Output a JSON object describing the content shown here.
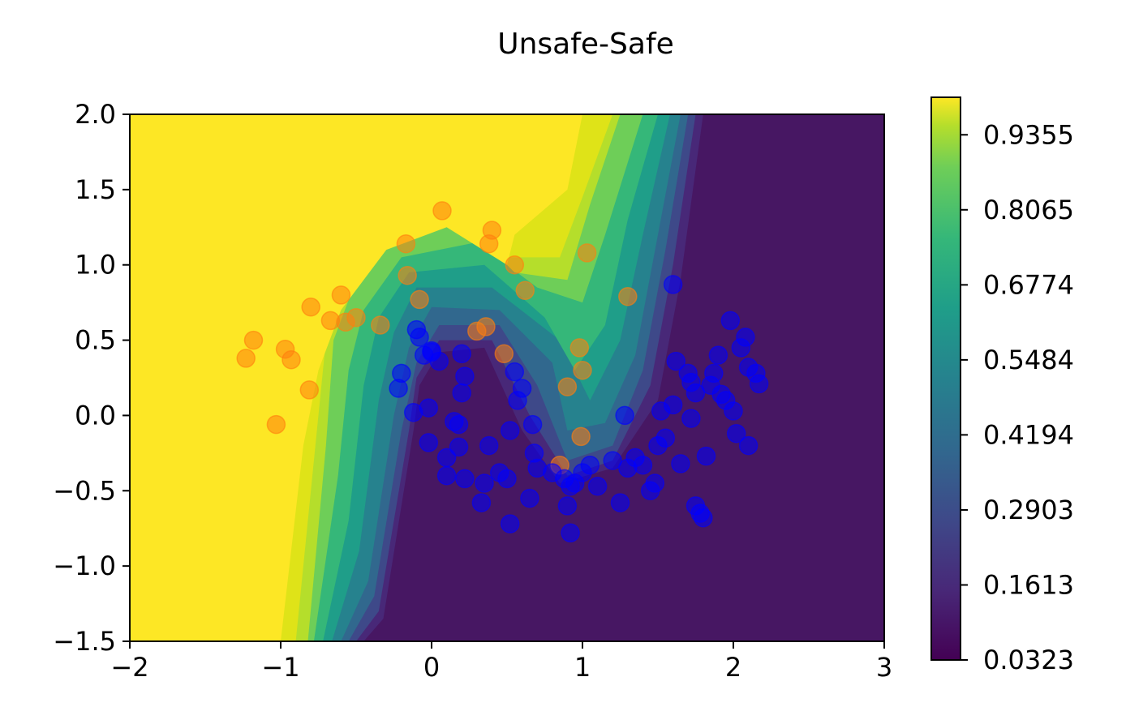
{
  "chart_data": {
    "type": "contour",
    "title": "Unsafe-Safe",
    "xlabel": "",
    "ylabel": "",
    "xlim": [
      -2,
      3
    ],
    "ylim": [
      -1.5,
      2.0
    ],
    "x_ticks": [
      -2,
      -1,
      0,
      1,
      2,
      3
    ],
    "x_tick_labels": [
      "−2",
      "−1",
      "0",
      "1",
      "2",
      "3"
    ],
    "y_ticks": [
      -1.5,
      -1.0,
      -0.5,
      0.0,
      0.5,
      1.0,
      1.5,
      2.0
    ],
    "y_tick_labels": [
      "−1.5",
      "−1.0",
      "−0.5",
      "0.0",
      "0.5",
      "1.0",
      "1.5",
      "2.0"
    ],
    "colorbar": {
      "min": 0.0323,
      "max": 1.0,
      "ticks": [
        0.0323,
        0.1613,
        0.2903,
        0.4194,
        0.5484,
        0.6774,
        0.8065,
        0.9355
      ],
      "tick_labels": [
        "0.0323",
        "0.1613",
        "0.2903",
        "0.4194",
        "0.5484",
        "0.6774",
        "0.8065",
        "0.9355"
      ],
      "colormap": "viridis"
    },
    "series": [
      {
        "class": "unsafe",
        "color": "#ff7f0e",
        "points": [
          [
            -1.23,
            0.38
          ],
          [
            -1.18,
            0.5
          ],
          [
            -1.03,
            -0.06
          ],
          [
            -0.97,
            0.44
          ],
          [
            -0.93,
            0.37
          ],
          [
            -0.81,
            0.17
          ],
          [
            -0.8,
            0.72
          ],
          [
            -0.67,
            0.63
          ],
          [
            -0.6,
            0.8
          ],
          [
            -0.57,
            0.62
          ],
          [
            -0.5,
            0.65
          ],
          [
            -0.34,
            0.6
          ],
          [
            -0.17,
            1.14
          ],
          [
            -0.16,
            0.93
          ],
          [
            -0.08,
            0.77
          ],
          [
            0.07,
            1.36
          ],
          [
            0.3,
            0.56
          ],
          [
            0.36,
            0.59
          ],
          [
            0.38,
            1.14
          ],
          [
            0.4,
            1.23
          ],
          [
            0.48,
            0.41
          ],
          [
            0.55,
            1.0
          ],
          [
            0.62,
            0.83
          ],
          [
            0.85,
            -0.33
          ],
          [
            0.9,
            0.19
          ],
          [
            0.98,
            0.45
          ],
          [
            1.0,
            0.3
          ],
          [
            0.99,
            -0.14
          ],
          [
            1.03,
            1.08
          ],
          [
            1.3,
            0.79
          ]
        ]
      },
      {
        "class": "safe",
        "color": "#0000ff",
        "points": [
          [
            -0.1,
            0.57
          ],
          [
            -0.08,
            0.52
          ],
          [
            -0.2,
            0.28
          ],
          [
            -0.22,
            0.18
          ],
          [
            -0.12,
            0.02
          ],
          [
            -0.02,
            0.05
          ],
          [
            -0.05,
            0.4
          ],
          [
            0.0,
            0.43
          ],
          [
            0.05,
            0.36
          ],
          [
            0.2,
            0.41
          ],
          [
            0.22,
            0.26
          ],
          [
            0.2,
            0.15
          ],
          [
            0.15,
            -0.04
          ],
          [
            0.18,
            -0.06
          ],
          [
            -0.02,
            -0.18
          ],
          [
            0.1,
            -0.28
          ],
          [
            0.18,
            -0.21
          ],
          [
            0.1,
            -0.4
          ],
          [
            0.22,
            -0.42
          ],
          [
            0.38,
            -0.2
          ],
          [
            0.35,
            -0.45
          ],
          [
            0.33,
            -0.58
          ],
          [
            0.45,
            -0.38
          ],
          [
            0.5,
            -0.42
          ],
          [
            0.52,
            -0.1
          ],
          [
            0.55,
            0.29
          ],
          [
            0.57,
            0.1
          ],
          [
            0.6,
            0.18
          ],
          [
            0.65,
            -0.55
          ],
          [
            0.52,
            -0.72
          ],
          [
            0.7,
            -0.35
          ],
          [
            0.68,
            -0.25
          ],
          [
            0.8,
            -0.38
          ],
          [
            0.88,
            -0.42
          ],
          [
            0.92,
            -0.47
          ],
          [
            0.95,
            -0.45
          ],
          [
            1.0,
            -0.38
          ],
          [
            1.05,
            -0.33
          ],
          [
            1.1,
            -0.47
          ],
          [
            0.9,
            -0.6
          ],
          [
            0.92,
            -0.78
          ],
          [
            1.2,
            -0.3
          ],
          [
            1.25,
            -0.58
          ],
          [
            1.3,
            -0.35
          ],
          [
            1.28,
            0.0
          ],
          [
            1.35,
            -0.28
          ],
          [
            1.4,
            -0.33
          ],
          [
            1.45,
            -0.5
          ],
          [
            1.48,
            -0.45
          ],
          [
            1.5,
            -0.2
          ],
          [
            1.52,
            0.03
          ],
          [
            1.55,
            -0.15
          ],
          [
            1.6,
            0.07
          ],
          [
            1.62,
            0.36
          ],
          [
            1.6,
            0.87
          ],
          [
            1.65,
            -0.32
          ],
          [
            1.7,
            0.28
          ],
          [
            1.72,
            0.22
          ],
          [
            1.75,
            0.15
          ],
          [
            1.75,
            -0.6
          ],
          [
            1.8,
            -0.68
          ],
          [
            1.78,
            -0.65
          ],
          [
            1.82,
            -0.27
          ],
          [
            1.85,
            0.2
          ],
          [
            1.9,
            0.4
          ],
          [
            1.95,
            0.1
          ],
          [
            1.98,
            0.63
          ],
          [
            2.0,
            0.03
          ],
          [
            2.02,
            -0.12
          ],
          [
            2.05,
            0.45
          ],
          [
            2.08,
            0.52
          ],
          [
            2.1,
            0.32
          ],
          [
            2.1,
            -0.2
          ],
          [
            2.15,
            0.28
          ],
          [
            2.17,
            0.21
          ],
          [
            1.87,
            0.28
          ],
          [
            1.92,
            0.14
          ],
          [
            1.72,
            -0.02
          ],
          [
            0.67,
            -0.06
          ],
          [
            0.0,
            0.42
          ]
        ]
      }
    ]
  }
}
